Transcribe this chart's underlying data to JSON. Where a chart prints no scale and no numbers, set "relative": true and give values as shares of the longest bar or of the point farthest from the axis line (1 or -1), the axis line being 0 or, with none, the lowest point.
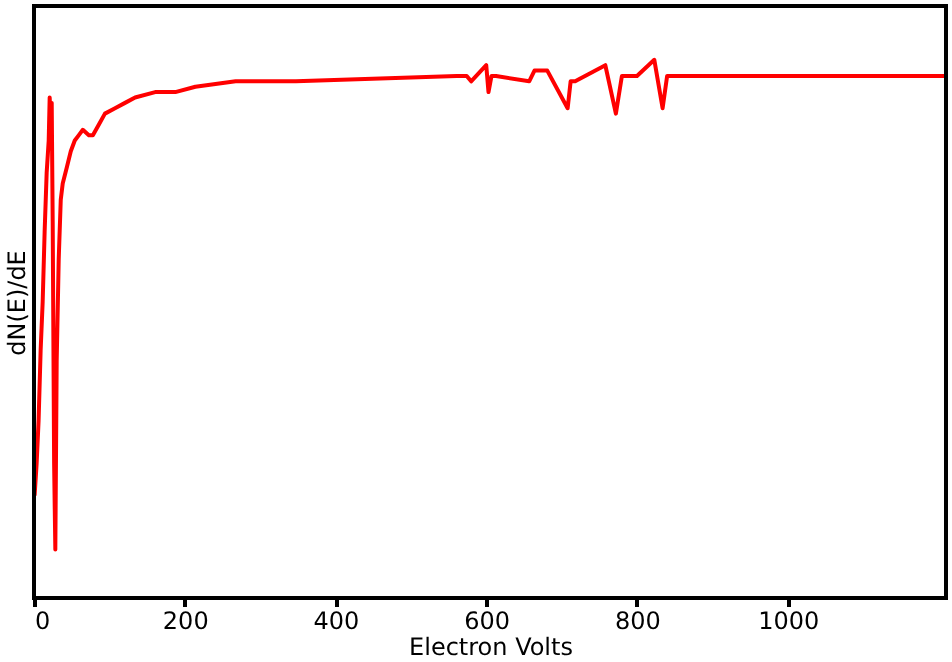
{
  "chart_data": {
    "type": "line",
    "xlabel": "Electron Volts",
    "ylabel": "dN(E)/dE",
    "relative": true,
    "grid": false,
    "marker": "none",
    "line_style": "solid",
    "xlim": [
      0,
      1210
    ],
    "xticks": [
      0,
      200,
      400,
      600,
      800,
      1000
    ],
    "x": [
      0.8,
      3.5,
      6.1,
      8.8,
      11.5,
      14.1,
      16.8,
      19.5,
      20.8,
      22.1,
      23.5,
      24.8,
      26.7,
      28.3,
      30.1,
      32.8,
      35.5,
      38.1,
      43.5,
      48.8,
      54.1,
      59.5,
      64.8,
      72.8,
      78.1,
      86.1,
      94.1,
      107.5,
      120.8,
      134.1,
      160.8,
      187.5,
      214.1,
      267.5,
      347.5,
      560.8,
      574.1,
      580,
      600,
      603,
      607,
      613,
      657,
      664,
      681,
      708,
      712,
      718,
      758,
      772,
      780,
      800,
      823,
      834,
      840,
      858,
      1210
    ],
    "series": [
      {
        "color": "#ff0000",
        "values": [
          0.19,
          0.25,
          0.33,
          0.46,
          0.55,
          0.68,
          0.79,
          0.85,
          0.93,
          0.89,
          0.92,
          0.7,
          0.25,
          0.09,
          0.44,
          0.63,
          0.74,
          0.77,
          0.8,
          0.83,
          0.85,
          0.86,
          0.87,
          0.86,
          0.86,
          0.88,
          0.9,
          0.91,
          0.92,
          0.93,
          0.94,
          0.94,
          0.95,
          0.96,
          0.96,
          0.97,
          0.97,
          0.96,
          0.99,
          0.94,
          0.97,
          0.97,
          0.96,
          0.98,
          0.98,
          0.91,
          0.96,
          0.96,
          0.99,
          0.9,
          0.97,
          0.97,
          1.0,
          0.91,
          0.97,
          0.97,
          0.97
        ]
      }
    ]
  }
}
